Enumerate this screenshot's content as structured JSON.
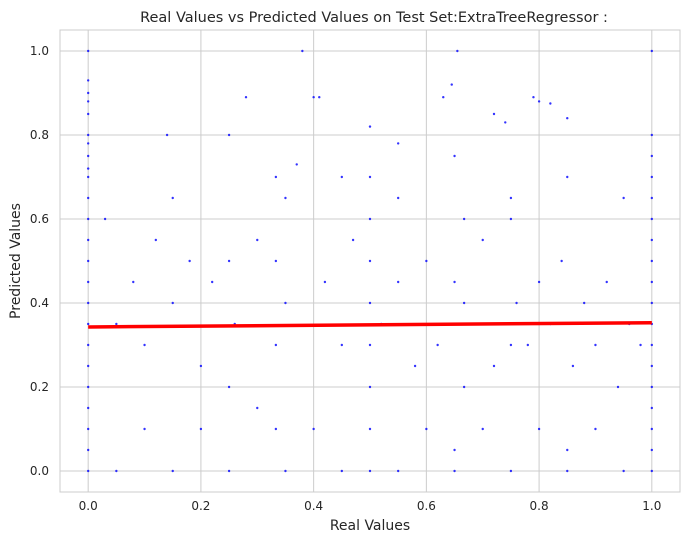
{
  "chart_data": {
    "type": "scatter",
    "title": "Real Values vs Predicted Values on Test Set:ExtraTreeRegressor :",
    "xlabel": "Real Values",
    "ylabel": "Predicted Values",
    "xlim": [
      -0.05,
      1.05
    ],
    "ylim": [
      -0.05,
      1.05
    ],
    "xticks": [
      0.0,
      0.2,
      0.4,
      0.6,
      0.8,
      1.0
    ],
    "yticks": [
      0.0,
      0.2,
      0.4,
      0.6,
      0.8,
      1.0
    ],
    "xtick_labels": [
      "0.0",
      "0.2",
      "0.4",
      "0.6",
      "0.8",
      "1.0"
    ],
    "ytick_labels": [
      "0.0",
      "0.2",
      "0.4",
      "0.6",
      "0.8",
      "1.0"
    ],
    "grid": true,
    "point_color": "#0000ff",
    "line_color": "#ff0000",
    "regression_line": {
      "x": [
        0.0,
        1.0
      ],
      "y": [
        0.343,
        0.353
      ]
    },
    "series": [
      {
        "values": [
          [
            0.0,
            1.0
          ],
          [
            0.0,
            0.93
          ],
          [
            0.0,
            0.9
          ],
          [
            0.0,
            0.88
          ],
          [
            0.0,
            0.85
          ],
          [
            0.0,
            0.8
          ],
          [
            0.0,
            0.78
          ],
          [
            0.0,
            0.75
          ],
          [
            0.0,
            0.72
          ],
          [
            0.0,
            0.7
          ],
          [
            0.0,
            0.65
          ],
          [
            0.0,
            0.6
          ],
          [
            0.0,
            0.55
          ],
          [
            0.0,
            0.5
          ],
          [
            0.0,
            0.45
          ],
          [
            0.0,
            0.4
          ],
          [
            0.0,
            0.35
          ],
          [
            0.0,
            0.3
          ],
          [
            0.0,
            0.25
          ],
          [
            0.0,
            0.2
          ],
          [
            0.0,
            0.15
          ],
          [
            0.0,
            0.1
          ],
          [
            0.0,
            0.05
          ],
          [
            0.0,
            0.0
          ],
          [
            1.0,
            1.0
          ],
          [
            1.0,
            0.8
          ],
          [
            1.0,
            0.75
          ],
          [
            1.0,
            0.7
          ],
          [
            1.0,
            0.65
          ],
          [
            1.0,
            0.6
          ],
          [
            1.0,
            0.55
          ],
          [
            1.0,
            0.5
          ],
          [
            1.0,
            0.45
          ],
          [
            1.0,
            0.4
          ],
          [
            1.0,
            0.35
          ],
          [
            1.0,
            0.3
          ],
          [
            1.0,
            0.25
          ],
          [
            1.0,
            0.2
          ],
          [
            1.0,
            0.15
          ],
          [
            1.0,
            0.1
          ],
          [
            1.0,
            0.05
          ],
          [
            1.0,
            0.0
          ],
          [
            0.5,
            0.82
          ],
          [
            0.5,
            0.7
          ],
          [
            0.5,
            0.6
          ],
          [
            0.5,
            0.5
          ],
          [
            0.5,
            0.4
          ],
          [
            0.5,
            0.3
          ],
          [
            0.5,
            0.2
          ],
          [
            0.5,
            0.1
          ],
          [
            0.5,
            0.0
          ],
          [
            0.333,
            0.7
          ],
          [
            0.333,
            0.5
          ],
          [
            0.333,
            0.3
          ],
          [
            0.333,
            0.1
          ],
          [
            0.667,
            0.6
          ],
          [
            0.667,
            0.4
          ],
          [
            0.667,
            0.2
          ],
          [
            0.25,
            0.8
          ],
          [
            0.25,
            0.5
          ],
          [
            0.25,
            0.2
          ],
          [
            0.75,
            0.6
          ],
          [
            0.75,
            0.3
          ],
          [
            0.38,
            1.0
          ],
          [
            0.655,
            1.0
          ],
          [
            0.28,
            0.89
          ],
          [
            0.4,
            0.89
          ],
          [
            0.41,
            0.89
          ],
          [
            0.63,
            0.89
          ],
          [
            0.645,
            0.92
          ],
          [
            0.79,
            0.89
          ],
          [
            0.8,
            0.88
          ],
          [
            0.82,
            0.875
          ],
          [
            0.72,
            0.85
          ],
          [
            0.85,
            0.84
          ],
          [
            0.74,
            0.83
          ],
          [
            0.14,
            0.8
          ],
          [
            0.37,
            0.73
          ],
          [
            0.55,
            0.78
          ],
          [
            0.03,
            0.6
          ],
          [
            0.05,
            0.35
          ],
          [
            0.08,
            0.45
          ],
          [
            0.1,
            0.3
          ],
          [
            0.12,
            0.55
          ],
          [
            0.15,
            0.4
          ],
          [
            0.18,
            0.5
          ],
          [
            0.2,
            0.25
          ],
          [
            0.22,
            0.45
          ],
          [
            0.26,
            0.35
          ],
          [
            0.3,
            0.55
          ],
          [
            0.35,
            0.4
          ],
          [
            0.42,
            0.45
          ],
          [
            0.45,
            0.3
          ],
          [
            0.47,
            0.55
          ],
          [
            0.52,
            0.35
          ],
          [
            0.55,
            0.45
          ],
          [
            0.58,
            0.25
          ],
          [
            0.6,
            0.5
          ],
          [
            0.62,
            0.3
          ],
          [
            0.65,
            0.45
          ],
          [
            0.68,
            0.35
          ],
          [
            0.7,
            0.55
          ],
          [
            0.72,
            0.25
          ],
          [
            0.76,
            0.4
          ],
          [
            0.78,
            0.3
          ],
          [
            0.8,
            0.45
          ],
          [
            0.82,
            0.35
          ],
          [
            0.84,
            0.5
          ],
          [
            0.86,
            0.25
          ],
          [
            0.88,
            0.4
          ],
          [
            0.9,
            0.3
          ],
          [
            0.92,
            0.45
          ],
          [
            0.94,
            0.2
          ],
          [
            0.96,
            0.35
          ],
          [
            0.98,
            0.3
          ],
          [
            0.6,
            0.1
          ],
          [
            0.7,
            0.1
          ],
          [
            0.8,
            0.1
          ],
          [
            0.9,
            0.1
          ],
          [
            0.65,
            0.05
          ],
          [
            0.85,
            0.05
          ],
          [
            0.4,
            0.1
          ],
          [
            0.3,
            0.15
          ],
          [
            0.2,
            0.1
          ],
          [
            0.1,
            0.1
          ],
          [
            0.15,
            0.65
          ],
          [
            0.35,
            0.65
          ],
          [
            0.55,
            0.65
          ],
          [
            0.75,
            0.65
          ],
          [
            0.95,
            0.65
          ],
          [
            0.45,
            0.7
          ],
          [
            0.65,
            0.75
          ],
          [
            0.85,
            0.7
          ],
          [
            0.05,
            0.0
          ],
          [
            0.15,
            0.0
          ],
          [
            0.25,
            0.0
          ],
          [
            0.35,
            0.0
          ],
          [
            0.45,
            0.0
          ],
          [
            0.55,
            0.0
          ],
          [
            0.65,
            0.0
          ],
          [
            0.75,
            0.0
          ],
          [
            0.85,
            0.0
          ],
          [
            0.95,
            0.0
          ]
        ]
      }
    ]
  }
}
